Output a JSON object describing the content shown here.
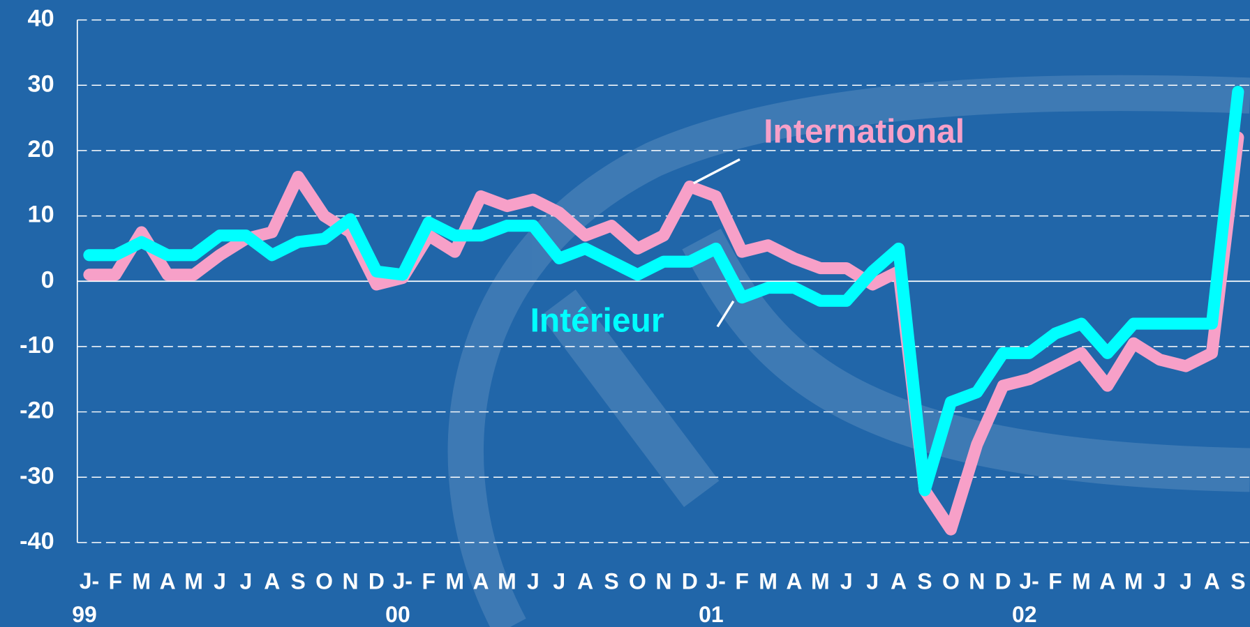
{
  "chart_data": {
    "type": "line",
    "categories": [
      "J-\n99",
      "F",
      "M",
      "A",
      "M",
      "J",
      "J",
      "A",
      "S",
      "O",
      "N",
      "D",
      "J-\n00",
      "F",
      "M",
      "A",
      "M",
      "J",
      "J",
      "A",
      "S",
      "O",
      "N",
      "D",
      "J-\n01",
      "F",
      "M",
      "A",
      "M",
      "J",
      "J",
      "A",
      "S",
      "O",
      "N",
      "D",
      "J-\n02",
      "F",
      "M",
      "A",
      "M",
      "J",
      "J",
      "A",
      "S"
    ],
    "series": [
      {
        "name": "International",
        "color": "#f7a0c8",
        "values": [
          1,
          1,
          7.5,
          1,
          1,
          4,
          6.5,
          7.5,
          16,
          10,
          7.5,
          -0.5,
          0.5,
          7,
          4.5,
          13,
          11.5,
          12.5,
          10.5,
          7,
          8.5,
          5,
          7,
          14.5,
          13,
          4.5,
          5.5,
          3.5,
          2,
          2,
          -0.5,
          1.5,
          -32,
          -38,
          -25,
          -16,
          -15,
          -13,
          -11,
          -16,
          -9.5,
          -12,
          -13,
          -11,
          22
        ]
      },
      {
        "name": "Intérieur",
        "color": "#00ffff",
        "values": [
          4,
          4,
          6,
          4,
          4,
          7,
          7,
          4,
          6,
          6.5,
          9.5,
          1.5,
          1,
          9,
          7,
          7,
          8.5,
          8.5,
          3.5,
          5,
          3,
          1,
          3,
          3,
          5,
          -2.5,
          -1,
          -1,
          -3,
          -3,
          1.5,
          5,
          -32,
          -18.5,
          -17,
          -11,
          -11,
          -8,
          -6.5,
          -11,
          -6.5,
          -6.5,
          -6.5,
          -6.5,
          29
        ]
      }
    ],
    "ylim": [
      -40,
      40
    ],
    "yticks": [
      -40,
      -30,
      -20,
      -10,
      0,
      10,
      20,
      30,
      40
    ],
    "grid": true
  }
}
